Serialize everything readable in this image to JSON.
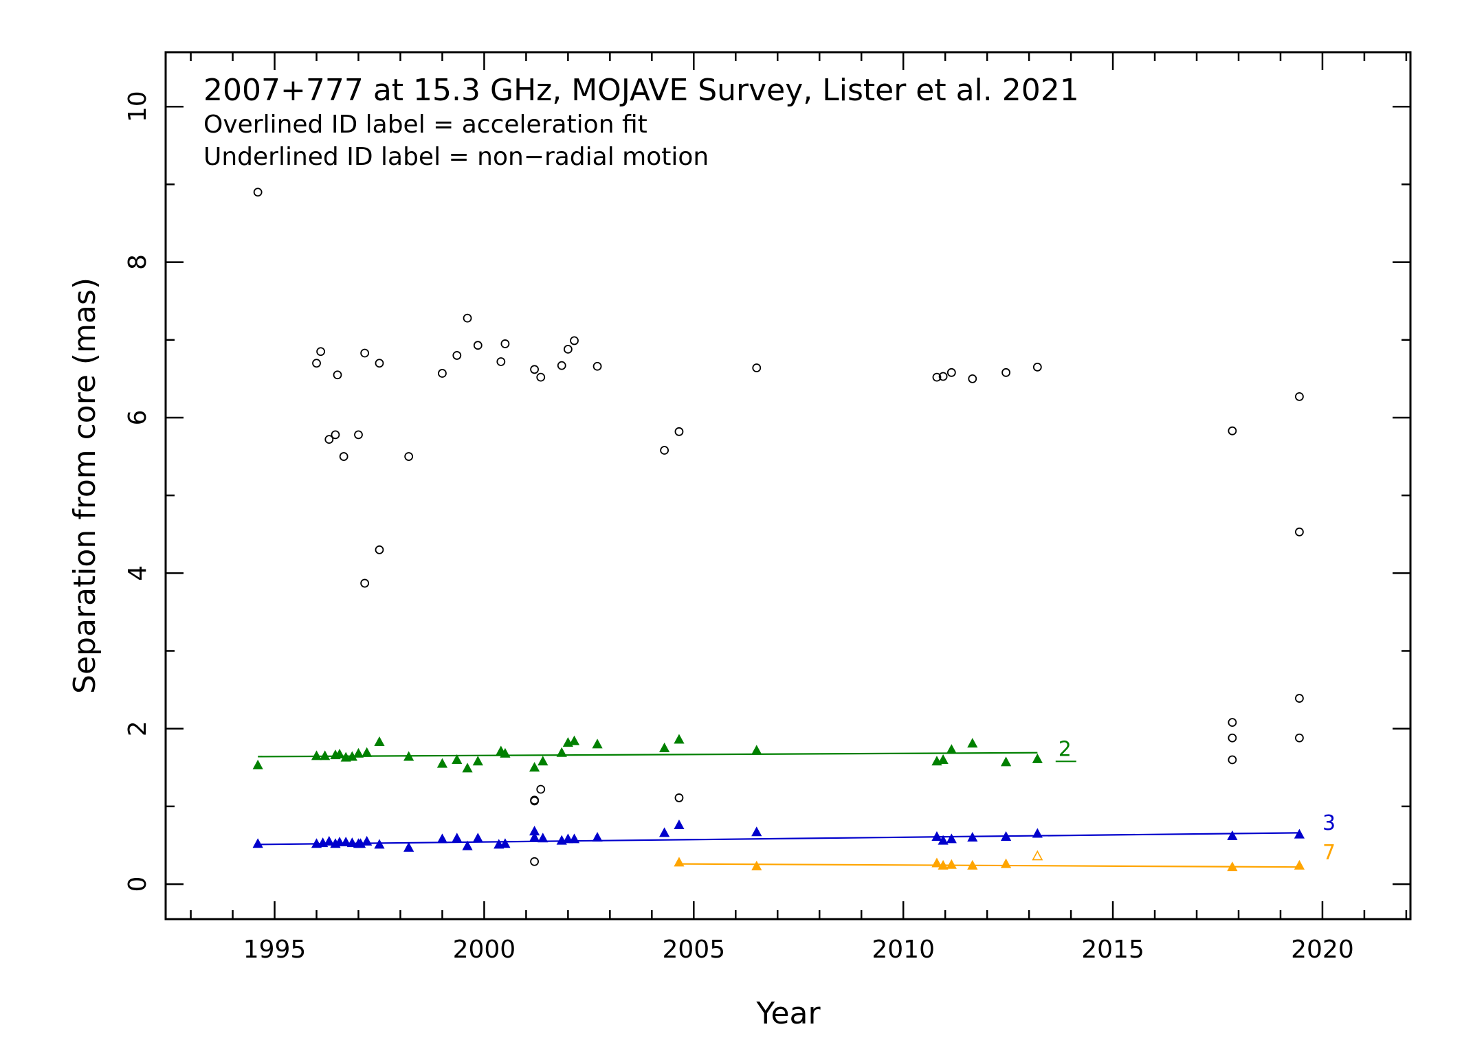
{
  "chart_data": {
    "type": "scatter",
    "title": "2007+777 at 15.3 GHz, MOJAVE Survey, Lister et al. 2021",
    "notes": [
      "Overlined ID label = acceleration fit",
      "Underlined ID label = non−radial motion"
    ],
    "xlabel": "Year",
    "ylabel": "Separation from core (mas)",
    "xlim": [
      1992.4,
      2022.1
    ],
    "ylim": [
      -0.45,
      10.7
    ],
    "xticks": [
      1995,
      2000,
      2005,
      2010,
      2015,
      2020
    ],
    "yticks": [
      0,
      2,
      4,
      6,
      8,
      10
    ],
    "xtick_labels": [
      "1995",
      "2000",
      "2005",
      "2010",
      "2015",
      "2020"
    ],
    "ytick_labels": [
      "0",
      "2",
      "4",
      "6",
      "8",
      "10"
    ],
    "unassigned": {
      "color": "#000000",
      "marker": "open-circle",
      "points": [
        [
          1994.6,
          8.9
        ],
        [
          1996.0,
          6.7
        ],
        [
          1996.1,
          6.85
        ],
        [
          1996.3,
          5.72
        ],
        [
          1996.45,
          5.78
        ],
        [
          1996.5,
          6.55
        ],
        [
          1996.65,
          5.5
        ],
        [
          1997.0,
          5.78
        ],
        [
          1997.15,
          6.83
        ],
        [
          1997.15,
          3.87
        ],
        [
          1997.5,
          6.7
        ],
        [
          1997.5,
          4.3
        ],
        [
          1998.2,
          5.5
        ],
        [
          1999.0,
          6.57
        ],
        [
          1999.35,
          6.8
        ],
        [
          1999.6,
          7.28
        ],
        [
          1999.85,
          6.93
        ],
        [
          2000.4,
          6.72
        ],
        [
          2000.5,
          6.95
        ],
        [
          2001.2,
          6.62
        ],
        [
          2001.2,
          1.07
        ],
        [
          2001.2,
          0.29
        ],
        [
          2001.2,
          1.08
        ],
        [
          2001.35,
          1.22
        ],
        [
          2001.35,
          6.52
        ],
        [
          2001.85,
          6.67
        ],
        [
          2002.0,
          6.88
        ],
        [
          2002.15,
          6.99
        ],
        [
          2002.7,
          6.66
        ],
        [
          2004.3,
          5.58
        ],
        [
          2004.65,
          5.82
        ],
        [
          2004.65,
          1.11
        ],
        [
          2006.5,
          6.64
        ],
        [
          2010.8,
          6.52
        ],
        [
          2010.95,
          6.53
        ],
        [
          2011.15,
          6.58
        ],
        [
          2011.65,
          6.5
        ],
        [
          2012.45,
          6.58
        ],
        [
          2013.2,
          6.65
        ],
        [
          2017.85,
          5.83
        ],
        [
          2017.85,
          2.08
        ],
        [
          2017.85,
          1.88
        ],
        [
          2017.85,
          1.6
        ],
        [
          2019.45,
          6.27
        ],
        [
          2019.45,
          4.53
        ],
        [
          2019.45,
          2.39
        ],
        [
          2019.45,
          1.88
        ]
      ]
    },
    "series": [
      {
        "name": "2",
        "color": "#008000",
        "underlined": true,
        "fit": [
          [
            1994.6,
            1.64
          ],
          [
            2013.2,
            1.69
          ]
        ],
        "points": [
          [
            1994.6,
            1.53
          ],
          [
            1996.0,
            1.65
          ],
          [
            1996.2,
            1.65
          ],
          [
            1996.45,
            1.66
          ],
          [
            1996.55,
            1.67
          ],
          [
            1996.7,
            1.63
          ],
          [
            1996.85,
            1.64
          ],
          [
            1997.0,
            1.68
          ],
          [
            1997.2,
            1.69
          ],
          [
            1997.5,
            1.83
          ],
          [
            1998.2,
            1.64
          ],
          [
            1999.0,
            1.55
          ],
          [
            1999.35,
            1.6
          ],
          [
            1999.6,
            1.49
          ],
          [
            1999.85,
            1.58
          ],
          [
            2000.4,
            1.71
          ],
          [
            2000.5,
            1.68
          ],
          [
            2001.2,
            1.5
          ],
          [
            2001.4,
            1.58
          ],
          [
            2001.85,
            1.69
          ],
          [
            2002.0,
            1.82
          ],
          [
            2002.15,
            1.84
          ],
          [
            2002.7,
            1.8
          ],
          [
            2004.3,
            1.75
          ],
          [
            2004.65,
            1.86
          ],
          [
            2006.5,
            1.72
          ],
          [
            2010.8,
            1.58
          ],
          [
            2010.95,
            1.6
          ],
          [
            2011.15,
            1.73
          ],
          [
            2011.65,
            1.81
          ],
          [
            2012.45,
            1.57
          ],
          [
            2013.2,
            1.61
          ]
        ],
        "label_pos": [
          2013.7,
          1.65
        ]
      },
      {
        "name": "3",
        "color": "#0000cc",
        "underlined": false,
        "fit": [
          [
            1994.6,
            0.51
          ],
          [
            2019.45,
            0.66
          ]
        ],
        "points": [
          [
            1994.6,
            0.52
          ],
          [
            1996.0,
            0.52
          ],
          [
            1996.15,
            0.53
          ],
          [
            1996.3,
            0.55
          ],
          [
            1996.45,
            0.52
          ],
          [
            1996.55,
            0.54
          ],
          [
            1996.7,
            0.54
          ],
          [
            1996.85,
            0.53
          ],
          [
            1997.0,
            0.52
          ],
          [
            1997.05,
            0.52
          ],
          [
            1997.2,
            0.55
          ],
          [
            1997.5,
            0.51
          ],
          [
            1998.2,
            0.47
          ],
          [
            1999.0,
            0.58
          ],
          [
            1999.35,
            0.59
          ],
          [
            1999.6,
            0.49
          ],
          [
            1999.85,
            0.59
          ],
          [
            2000.35,
            0.51
          ],
          [
            2000.5,
            0.52
          ],
          [
            2001.2,
            0.68
          ],
          [
            2001.2,
            0.6
          ],
          [
            2001.4,
            0.59
          ],
          [
            2001.85,
            0.56
          ],
          [
            2002.0,
            0.58
          ],
          [
            2002.15,
            0.58
          ],
          [
            2002.7,
            0.6
          ],
          [
            2004.3,
            0.66
          ],
          [
            2004.65,
            0.76
          ],
          [
            2006.5,
            0.67
          ],
          [
            2010.8,
            0.61
          ],
          [
            2010.95,
            0.56
          ],
          [
            2011.15,
            0.58
          ],
          [
            2011.65,
            0.6
          ],
          [
            2012.45,
            0.61
          ],
          [
            2013.2,
            0.65
          ],
          [
            2017.85,
            0.62
          ],
          [
            2019.45,
            0.64
          ]
        ],
        "label_pos": [
          2020.0,
          0.7
        ]
      },
      {
        "name": "7",
        "color": "#ffa500",
        "underlined": false,
        "fit": [
          [
            2004.65,
            0.26
          ],
          [
            2019.45,
            0.22
          ]
        ],
        "points": [
          [
            2004.65,
            0.28
          ],
          [
            2006.5,
            0.23
          ],
          [
            2010.8,
            0.27
          ],
          [
            2010.95,
            0.24
          ],
          [
            2011.15,
            0.25
          ],
          [
            2011.65,
            0.24
          ],
          [
            2012.45,
            0.26
          ],
          [
            2017.85,
            0.22
          ],
          [
            2019.45,
            0.24
          ]
        ],
        "open_points": [
          [
            2013.2,
            0.36
          ]
        ],
        "label_pos": [
          2020.0,
          0.32
        ]
      }
    ]
  }
}
